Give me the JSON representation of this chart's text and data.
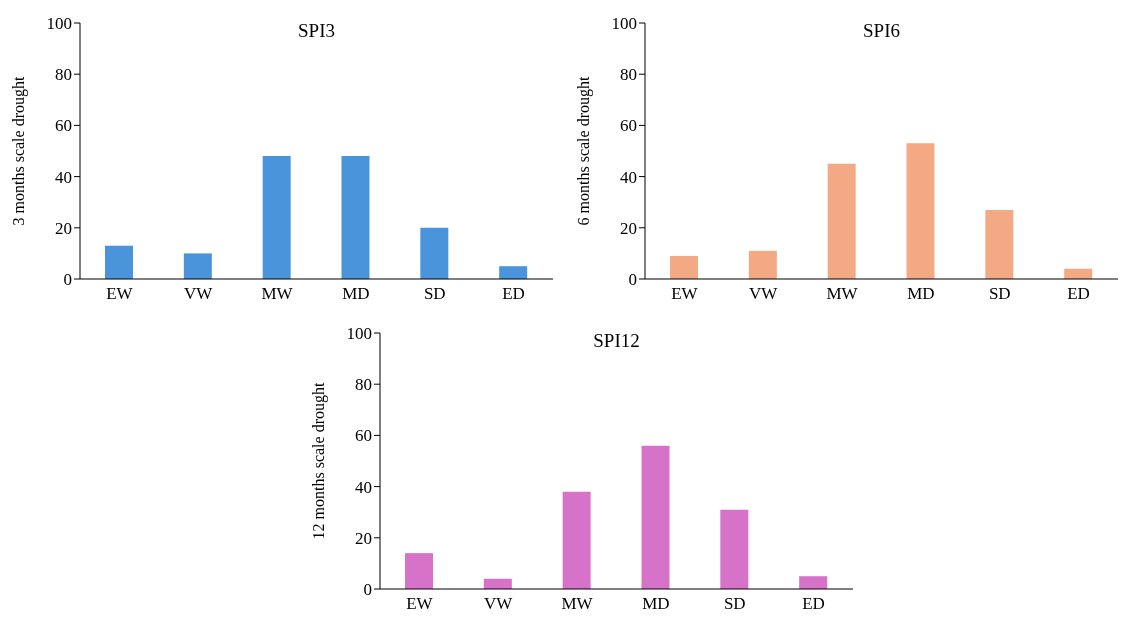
{
  "chart_data": [
    {
      "type": "bar",
      "title": "SPI3",
      "ylabel": "3 months scale drought",
      "categories": [
        "EW",
        "VW",
        "MW",
        "MD",
        "SD",
        "ED"
      ],
      "values": [
        13,
        10,
        48,
        48,
        20,
        5
      ],
      "color": "#4a94dc",
      "ylim": [
        0,
        100
      ],
      "yticks": [
        0,
        20,
        40,
        60,
        80,
        100
      ]
    },
    {
      "type": "bar",
      "title": "SPI6",
      "ylabel": "6 months scale drought",
      "categories": [
        "EW",
        "VW",
        "MW",
        "MD",
        "SD",
        "ED"
      ],
      "values": [
        9,
        11,
        45,
        53,
        27,
        4
      ],
      "color": "#f2a984",
      "ylim": [
        0,
        100
      ],
      "yticks": [
        0,
        20,
        40,
        60,
        80,
        100
      ]
    },
    {
      "type": "bar",
      "title": "SPI12",
      "ylabel": "12 months scale drought",
      "categories": [
        "EW",
        "VW",
        "MW",
        "MD",
        "SD",
        "ED"
      ],
      "values": [
        14,
        4,
        38,
        56,
        31,
        5
      ],
      "color": "#d672c8",
      "ylim": [
        0,
        100
      ],
      "yticks": [
        0,
        20,
        40,
        60,
        80,
        100
      ]
    }
  ]
}
